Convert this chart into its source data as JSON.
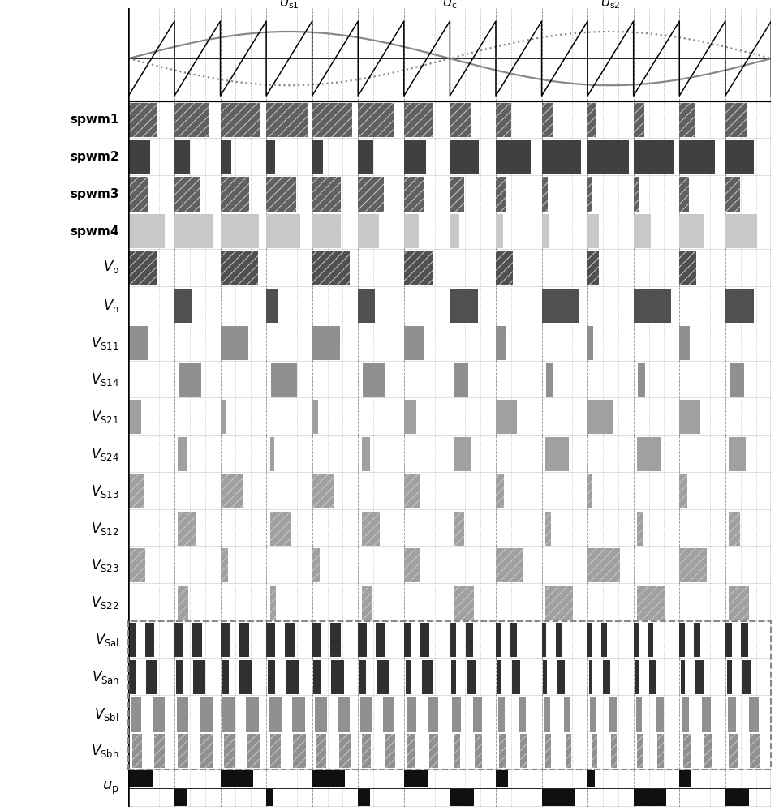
{
  "row_labels": [
    "spwm1",
    "spwm2",
    "spwm3",
    "spwm4",
    "V_p",
    "V_n",
    "V_S11",
    "V_S14",
    "V_S21",
    "V_S24",
    "V_S13",
    "V_S12",
    "V_S23",
    "V_S22",
    "V_Sal",
    "V_Sah",
    "V_Sbl",
    "V_Sbh",
    "u_p"
  ],
  "N_carrier": 14,
  "label_display": {
    "spwm1": "spwm1",
    "spwm2": "spwm2",
    "spwm3": "spwm3",
    "spwm4": "spwm4",
    "V_p": "V_p",
    "V_n": "V_n",
    "V_S11": "V_S11",
    "V_S14": "V_S14",
    "V_S21": "V_S21",
    "V_S24": "V_S24",
    "V_S13": "V_S13",
    "V_S12": "V_S12",
    "V_S23": "V_S23",
    "V_S22": "V_S22",
    "V_Sal": "V_Sal",
    "V_Sah": "V_Sah",
    "V_Sbl": "V_Sbl",
    "V_Sbh": "V_Sbh",
    "u_p": "u_p"
  },
  "row_facecolors": {
    "spwm1": "#606060",
    "spwm2": "#404040",
    "spwm3": "#606060",
    "spwm4": "#c8c8c8",
    "V_p": "#505050",
    "V_n": "#505050",
    "V_S11": "#909090",
    "V_S14": "#909090",
    "V_S21": "#a0a0a0",
    "V_S24": "#a0a0a0",
    "V_S13": "#a0a0a0",
    "V_S12": "#a0a0a0",
    "V_S23": "#a0a0a0",
    "V_S22": "#a0a0a0",
    "V_Sal": "#303030",
    "V_Sah": "#303030",
    "V_Sbl": "#909090",
    "V_Sbh": "#909090",
    "u_p": "#101010"
  },
  "row_hatches": {
    "spwm1": "///",
    "spwm2": "",
    "spwm3": "///",
    "spwm4": "",
    "V_p": "///",
    "V_n": "",
    "V_S11": "",
    "V_S14": "",
    "V_S21": "",
    "V_S24": "",
    "V_S13": "///",
    "V_S12": "///",
    "V_S23": "///",
    "V_S22": "///",
    "V_Sal": "",
    "V_Sah": "",
    "V_Sbl": "",
    "V_Sbh": "///",
    "u_p": ""
  },
  "sine_amplitude": 0.72,
  "carrier_amplitude": 1.0,
  "Us1_color": "#888888",
  "Uc_color": "#888888",
  "carrier_color": "#000000"
}
